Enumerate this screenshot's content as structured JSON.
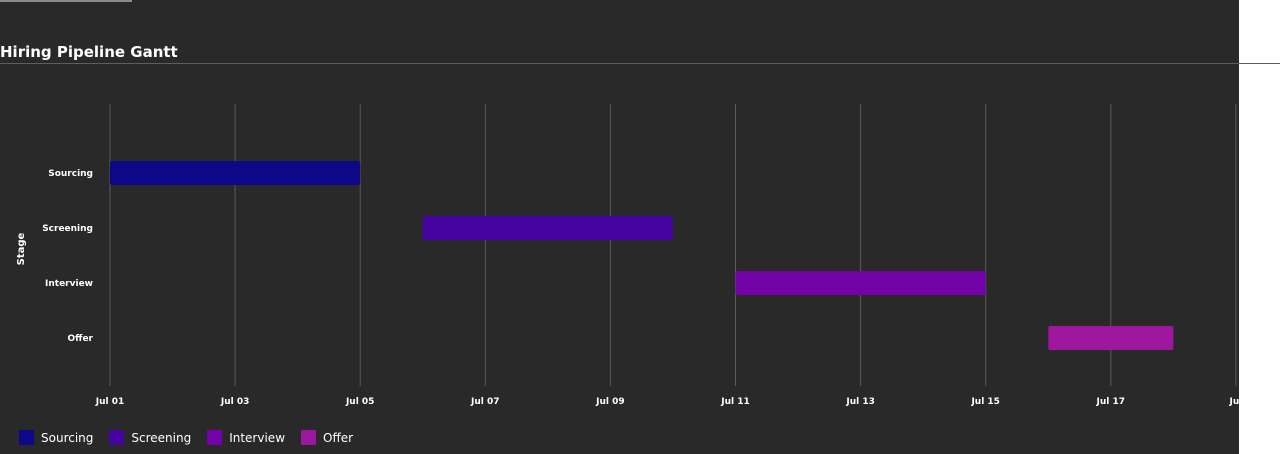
{
  "chart_data": {
    "type": "gantt",
    "title": "Hiring Pipeline Gantt",
    "ylabel": "Stage",
    "xlabel": "",
    "x_ticks": [
      "Jul 01",
      "Jul 03",
      "Jul 05",
      "Jul 07",
      "Jul 09",
      "Jul 11",
      "Jul 13",
      "Jul 15",
      "Jul 17",
      "Jul"
    ],
    "xlim": [
      "2024-07-01",
      "2024-07-19"
    ],
    "grid": "vertical",
    "legend_position": "bottom-left",
    "tasks": [
      {
        "name": "Sourcing",
        "start": "2024-07-01",
        "end": "2024-07-05",
        "color": "#0d0887"
      },
      {
        "name": "Screening",
        "start": "2024-07-06",
        "end": "2024-07-10",
        "color": "#46039f"
      },
      {
        "name": "Interview",
        "start": "2024-07-11",
        "end": "2024-07-15",
        "color": "#7201a8"
      },
      {
        "name": "Offer",
        "start": "2024-07-16",
        "end": "2024-07-18",
        "color": "#9c179e"
      }
    ]
  }
}
